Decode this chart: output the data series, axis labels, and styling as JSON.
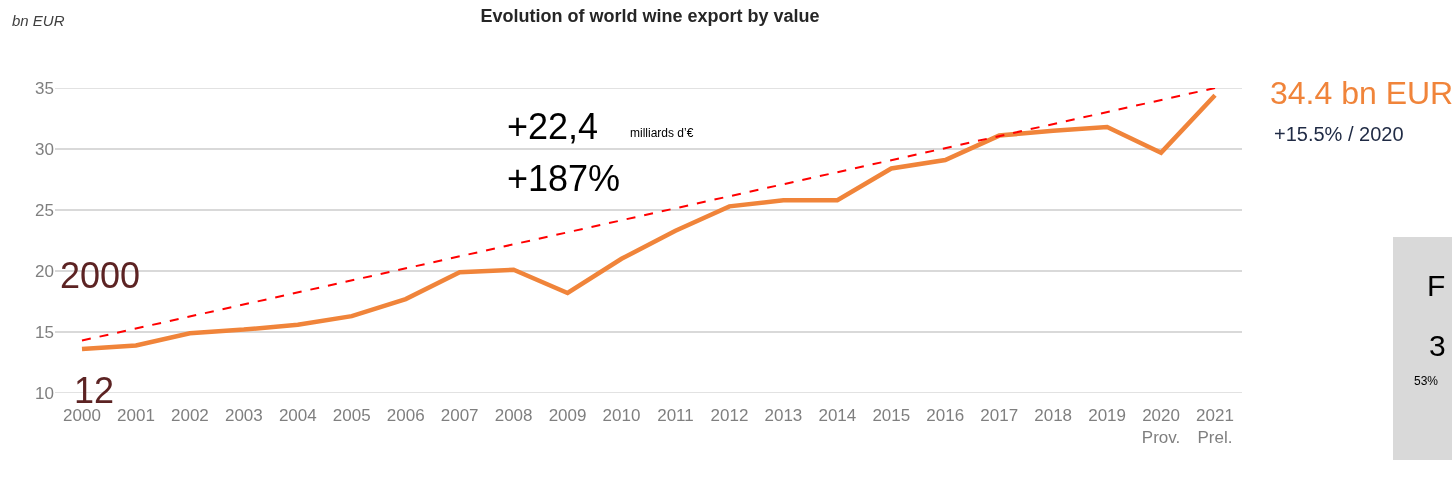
{
  "chart_data": {
    "type": "line",
    "title": "Evolution of world wine export by value",
    "ylabel": "bn EUR",
    "categories": [
      "2000",
      "2001",
      "2002",
      "2003",
      "2004",
      "2005",
      "2006",
      "2007",
      "2008",
      "2009",
      "2010",
      "2011",
      "2012",
      "2013",
      "2014",
      "2015",
      "2016",
      "2017",
      "2018",
      "2019",
      "2020\nProv.",
      "2021\nPrel."
    ],
    "series": [
      {
        "color": "#f0843a",
        "values": [
          13.6,
          13.9,
          14.9,
          15.2,
          15.6,
          16.3,
          17.7,
          19.9,
          20.1,
          18.2,
          21.0,
          23.3,
          25.3,
          25.8,
          25.8,
          28.4,
          29.1,
          31.1,
          31.5,
          31.8,
          29.7,
          34.4
        ]
      },
      {
        "type": "line",
        "color": "#ff0000",
        "line_style": "dashed",
        "values": [
          14.3,
          null,
          null,
          null,
          null,
          null,
          null,
          null,
          null,
          null,
          null,
          null,
          null,
          null,
          null,
          null,
          null,
          null,
          null,
          null,
          null,
          35.0
        ]
      }
    ],
    "ylim": [
      10,
      35
    ],
    "yticks": [
      10,
      15,
      20,
      25,
      30,
      35
    ],
    "grid": "y",
    "marker": "none",
    "annotations": [
      "+22,4",
      "milliards d’€",
      "+187%",
      "2000",
      "12",
      "34.4 bn EUR",
      "+15.5% / 2020",
      "F",
      "3",
      "53%"
    ]
  }
}
